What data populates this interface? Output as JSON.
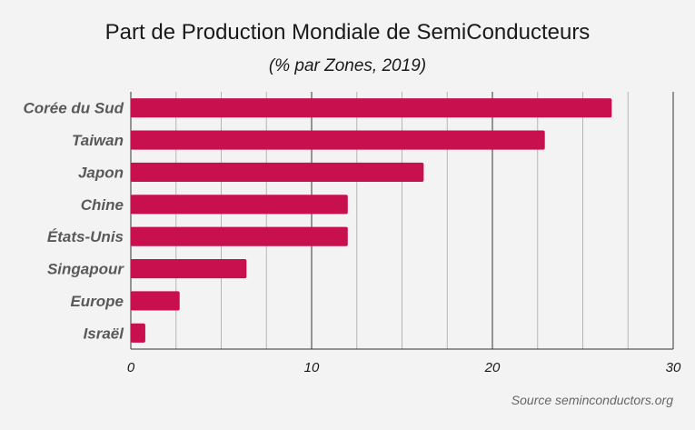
{
  "chart_data": {
    "type": "bar",
    "orientation": "horizontal",
    "title": "Part de Production Mondiale de SemiConducteurs",
    "subtitle": "(% par Zones, 2019)",
    "categories": [
      "Corée du Sud",
      "Taiwan",
      "Japon",
      "Chine",
      "États-Unis",
      "Singapour",
      "Europe",
      "Israël"
    ],
    "values": [
      26.6,
      22.9,
      16.2,
      12.0,
      12.0,
      6.4,
      2.7,
      0.8
    ],
    "xlim": [
      0,
      30
    ],
    "xticks": [
      0,
      10,
      20,
      30
    ],
    "grid": true,
    "bar_color": "#c8104e"
  },
  "source": "Source seminconductors.org"
}
